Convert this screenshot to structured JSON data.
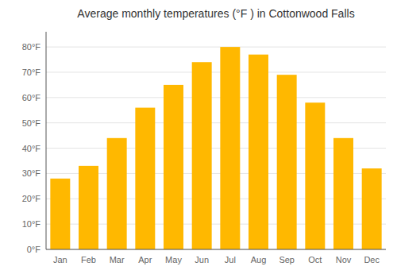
{
  "chart_data": {
    "type": "bar",
    "title": "Average monthly temperatures (°F ) in Cottonwood Falls",
    "categories": [
      "Jan",
      "Feb",
      "Mar",
      "Apr",
      "May",
      "Jun",
      "Jul",
      "Aug",
      "Sep",
      "Oct",
      "Nov",
      "Dec"
    ],
    "values": [
      28,
      33,
      44,
      56,
      65,
      74,
      80,
      77,
      69,
      58,
      44,
      32
    ],
    "color": "#FFB800",
    "ylim": [
      0,
      86
    ],
    "yticks": [
      {
        "value": 0,
        "label": "0°F"
      },
      {
        "value": 10,
        "label": "10°F"
      },
      {
        "value": 20,
        "label": "20°F"
      },
      {
        "value": 30,
        "label": "30°F"
      },
      {
        "value": 40,
        "label": "40°F"
      },
      {
        "value": 50,
        "label": "50°F"
      },
      {
        "value": 60,
        "label": "60°F"
      },
      {
        "value": 70,
        "label": "70°F"
      },
      {
        "value": 80,
        "label": "80°F"
      }
    ],
    "grid": true
  }
}
